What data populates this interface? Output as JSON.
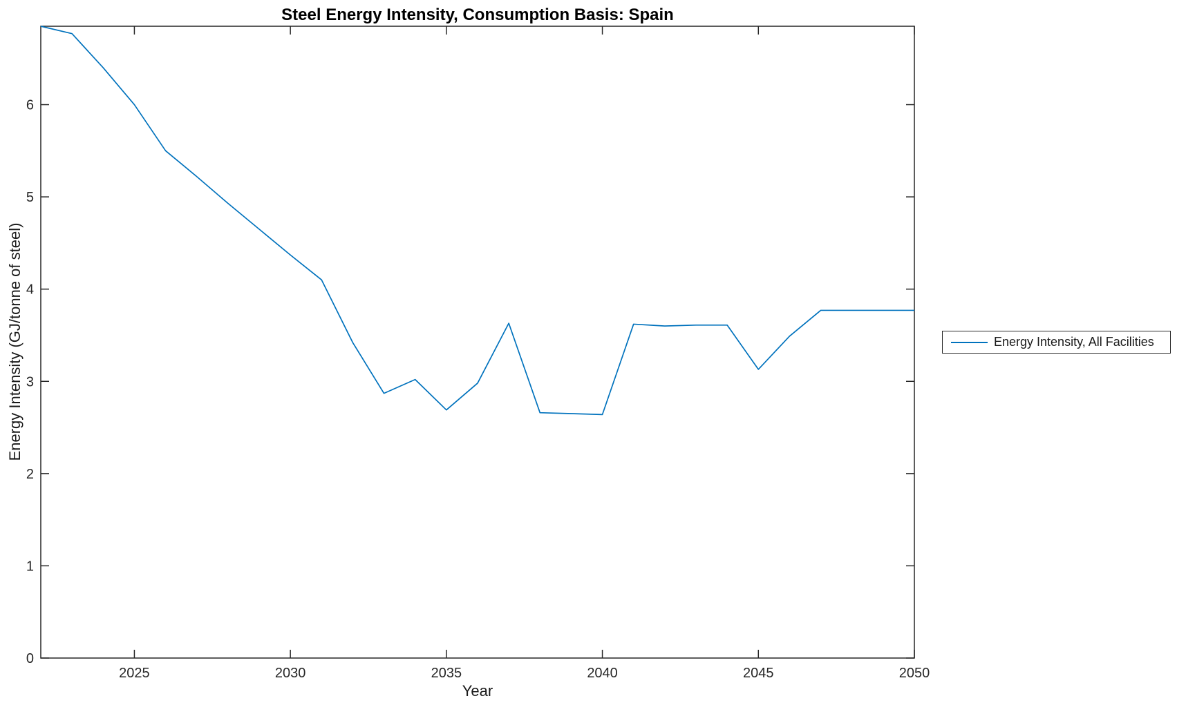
{
  "title": "Steel Energy Intensity, Consumption Basis: Spain",
  "xlabel": "Year",
  "ylabel": "Energy Intensity (GJ/tonne of steel)",
  "legend": {
    "position": "right-outside",
    "items": [
      {
        "label": "Energy Intensity, All Facilities",
        "color": "#0072BD"
      }
    ]
  },
  "colors": {
    "line": "#0072BD",
    "axis": "#262626",
    "tick_label": "#262626",
    "background": "#ffffff"
  },
  "chart_data": {
    "type": "line",
    "title": "Steel Energy Intensity, Consumption Basis: Spain",
    "xlabel": "Year",
    "ylabel": "Energy Intensity (GJ/tonne of steel)",
    "xlim": [
      2022,
      2050
    ],
    "ylim": [
      0,
      6.85
    ],
    "xticks": [
      2025,
      2030,
      2035,
      2040,
      2045,
      2050
    ],
    "yticks": [
      0,
      1,
      2,
      3,
      4,
      5,
      6
    ],
    "grid": false,
    "box": true,
    "legend_position": "right-outside",
    "series": [
      {
        "name": "Energy Intensity, All Facilities",
        "color": "#0072BD",
        "x": [
          2022,
          2023,
          2024,
          2025,
          2026,
          2027,
          2028,
          2029,
          2030,
          2031,
          2032,
          2033,
          2034,
          2035,
          2036,
          2037,
          2038,
          2039,
          2040,
          2041,
          2042,
          2043,
          2044,
          2045,
          2046,
          2047,
          2048,
          2049,
          2050
        ],
        "y": [
          6.85,
          6.77,
          6.4,
          6.0,
          5.5,
          5.22,
          4.93,
          4.65,
          4.37,
          4.1,
          3.42,
          2.87,
          3.02,
          2.69,
          2.98,
          3.63,
          2.66,
          2.65,
          2.64,
          3.62,
          3.6,
          3.61,
          3.61,
          3.13,
          3.49,
          3.77,
          3.77,
          3.77,
          3.77
        ]
      }
    ]
  }
}
